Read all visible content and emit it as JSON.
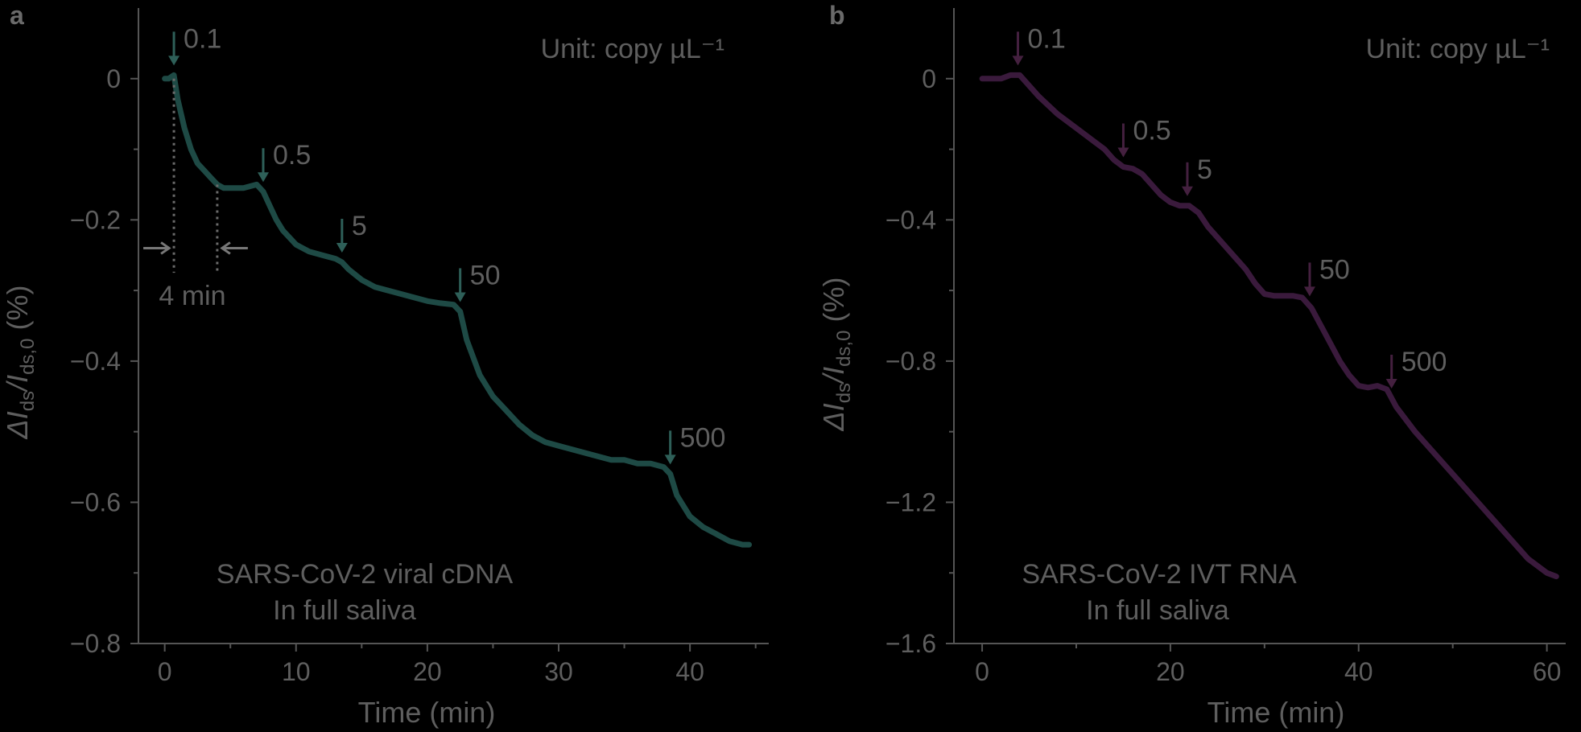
{
  "chart_data": [
    {
      "type": "line",
      "panel_label": "a",
      "unit_label": "Unit: copy µL⁻¹",
      "xlabel": "Time (min)",
      "ylabel_main": "ΔI",
      "ylabel_sub1": "ds",
      "ylabel_div": "/I",
      "ylabel_sub2": "ds,0",
      "ylabel_tail": " (%)",
      "xlim": [
        -2,
        46
      ],
      "ylim": [
        -0.8,
        0.1
      ],
      "xticks": [
        0,
        10,
        20,
        30,
        40
      ],
      "xtick_labels": [
        "0",
        "10",
        "20",
        "30",
        "40"
      ],
      "yticks": [
        0,
        -0.2,
        -0.4,
        -0.6,
        -0.8
      ],
      "ytick_labels": [
        "0",
        "−0.2",
        "−0.4",
        "−0.6",
        "−0.8"
      ],
      "line_color": "#1e4a45",
      "arrow_color": "#2e5f58",
      "series": [
        {
          "x": [
            0,
            0.3,
            0.7,
            1.0,
            1.5,
            2.0,
            2.5,
            3.0,
            3.5,
            4.0,
            4.5,
            5.0,
            6.0,
            7.0,
            7.5,
            8.0,
            8.5,
            9.0,
            10.0,
            11.0,
            12.0,
            13.0,
            13.5,
            14.0,
            15.0,
            16.0,
            17.0,
            18.0,
            19.0,
            20.0,
            21.0,
            22.0,
            22.5,
            23.0,
            24.0,
            25.0,
            26.0,
            27.0,
            28.0,
            29.0,
            30.0,
            31.0,
            32.0,
            33.0,
            34.0,
            35.0,
            36.0,
            37.0,
            38.0,
            38.5,
            39.0,
            40.0,
            41.0,
            42.0,
            43.0,
            44.0,
            44.5
          ],
          "y": [
            0.0,
            0.0,
            0.005,
            -0.03,
            -0.07,
            -0.1,
            -0.12,
            -0.13,
            -0.14,
            -0.15,
            -0.155,
            -0.155,
            -0.155,
            -0.15,
            -0.16,
            -0.18,
            -0.2,
            -0.215,
            -0.235,
            -0.245,
            -0.25,
            -0.255,
            -0.26,
            -0.27,
            -0.285,
            -0.295,
            -0.3,
            -0.305,
            -0.31,
            -0.315,
            -0.318,
            -0.32,
            -0.33,
            -0.37,
            -0.42,
            -0.45,
            -0.47,
            -0.49,
            -0.505,
            -0.515,
            -0.52,
            -0.525,
            -0.53,
            -0.535,
            -0.54,
            -0.54,
            -0.545,
            -0.545,
            -0.55,
            -0.56,
            -0.59,
            -0.62,
            -0.635,
            -0.645,
            -0.655,
            -0.66,
            -0.66
          ]
        }
      ],
      "additions": [
        {
          "x": 0.7,
          "label": "0.1"
        },
        {
          "x": 7.5,
          "label": "0.5"
        },
        {
          "x": 13.5,
          "label": "5"
        },
        {
          "x": 22.5,
          "label": "50"
        },
        {
          "x": 38.5,
          "label": "500"
        }
      ],
      "interval_marks": {
        "x1": 0.7,
        "x2": 4.0,
        "label": "4 min",
        "y": -0.24
      },
      "sample_line1": "SARS-CoV-2 viral cDNA",
      "sample_line2": "In full saliva"
    },
    {
      "type": "line",
      "panel_label": "b",
      "unit_label": "Unit: copy µL⁻¹",
      "xlabel": "Time (min)",
      "ylabel_main": "ΔI",
      "ylabel_sub1": "ds",
      "ylabel_div": "/I",
      "ylabel_sub2": "ds,0",
      "ylabel_tail": " (%)",
      "xlim": [
        -3,
        62
      ],
      "ylim": [
        -1.6,
        0.2
      ],
      "xticks": [
        0,
        20,
        40,
        60
      ],
      "xtick_labels": [
        "0",
        "20",
        "40",
        "60"
      ],
      "yticks": [
        0,
        -0.4,
        -0.8,
        -1.2,
        -1.6
      ],
      "ytick_labels": [
        "0",
        "−0.4",
        "−0.8",
        "−1.2",
        "−1.6"
      ],
      "line_color": "#3a1a3c",
      "arrow_color": "#44203f",
      "series": [
        {
          "x": [
            0,
            1,
            2,
            3,
            4,
            5,
            6,
            8,
            10,
            12,
            13,
            14,
            15,
            16,
            17,
            18,
            19,
            20,
            21,
            22,
            23,
            24,
            26,
            28,
            29,
            30,
            31,
            32,
            33,
            34,
            35,
            36,
            37,
            38,
            39,
            40,
            41,
            42,
            43,
            44,
            46,
            48,
            50,
            52,
            54,
            56,
            58,
            60,
            61
          ],
          "y": [
            0.0,
            0.0,
            0.0,
            0.01,
            0.01,
            -0.02,
            -0.05,
            -0.1,
            -0.14,
            -0.18,
            -0.2,
            -0.23,
            -0.25,
            -0.255,
            -0.27,
            -0.3,
            -0.33,
            -0.35,
            -0.36,
            -0.36,
            -0.38,
            -0.42,
            -0.48,
            -0.54,
            -0.58,
            -0.61,
            -0.615,
            -0.615,
            -0.615,
            -0.62,
            -0.65,
            -0.7,
            -0.75,
            -0.8,
            -0.84,
            -0.87,
            -0.875,
            -0.87,
            -0.88,
            -0.93,
            -1.0,
            -1.06,
            -1.12,
            -1.18,
            -1.24,
            -1.3,
            -1.36,
            -1.4,
            -1.41
          ]
        }
      ],
      "additions": [
        {
          "x": 3.8,
          "label": "0.1"
        },
        {
          "x": 15,
          "label": "0.5"
        },
        {
          "x": 21.8,
          "label": "5"
        },
        {
          "x": 34.8,
          "label": "50"
        },
        {
          "x": 43.5,
          "label": "500"
        }
      ],
      "sample_line1": "SARS-CoV-2 IVT RNA",
      "sample_line2": "In full saliva"
    }
  ]
}
